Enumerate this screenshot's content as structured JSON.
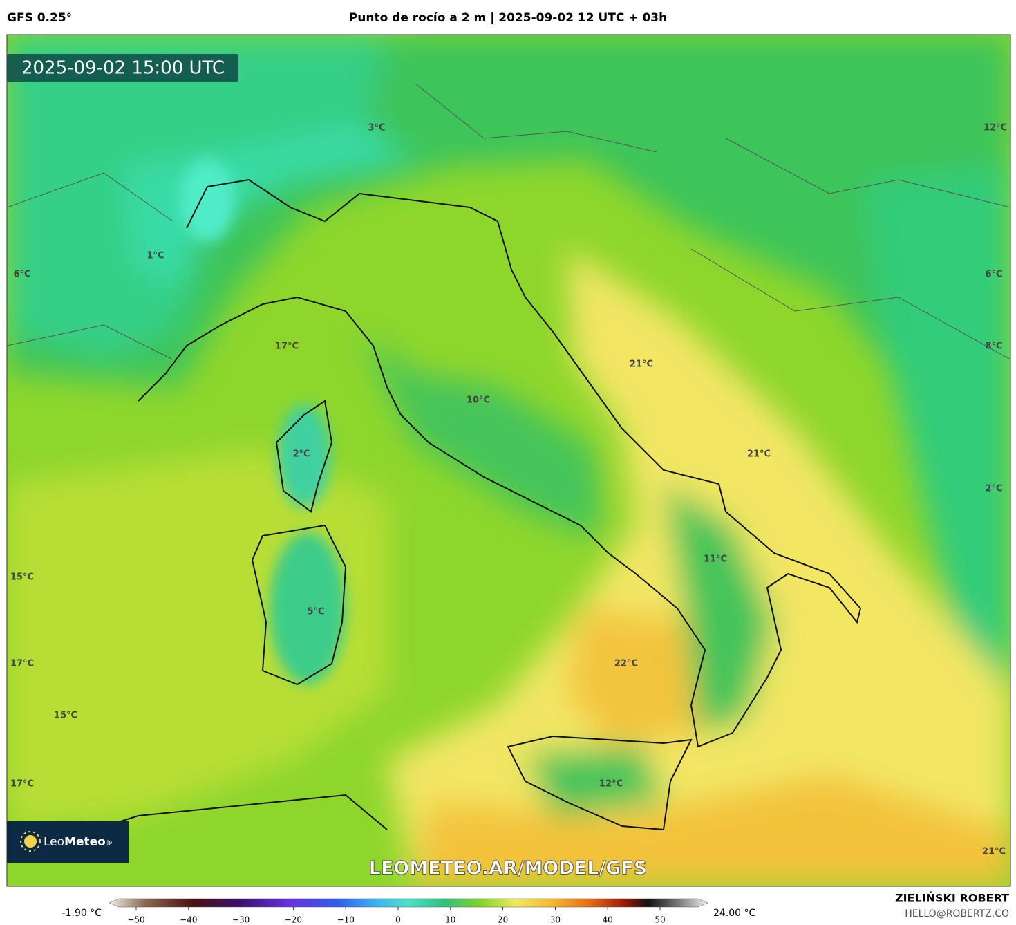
{
  "header": {
    "model": "GFS 0.25°",
    "title": "Punto de rocío a 2 m | 2025-09-02 12 UTC + 03h"
  },
  "timestamp": "2025-09-02 15:00 UTC",
  "map_labels": [
    "3°C",
    "12°C",
    "1°C",
    "6°C",
    "6°C",
    "17°C",
    "21°C",
    "8°C",
    "10°C",
    "2°C",
    "21°C",
    "2°C",
    "11°C",
    "15°C",
    "5°C",
    "17°C",
    "22°C",
    "15°C",
    "17°C",
    "12°C",
    "21°C"
  ],
  "logo": {
    "leo": "Leo",
    "meteo": "Meteo",
    "suffix": "jp"
  },
  "watermark": "LEOMETEO.AR/MODEL/GFS",
  "colorbar": {
    "min_label": "-1.90 °C",
    "max_label": "24.00 °C",
    "ticks": [
      "−50",
      "−40",
      "−30",
      "−20",
      "−10",
      "0",
      "10",
      "20",
      "30",
      "40",
      "50"
    ]
  },
  "credits": {
    "author": "ZIELIŃSKI ROBERT",
    "email": "HELLO@ROBERTZ.CO"
  }
}
